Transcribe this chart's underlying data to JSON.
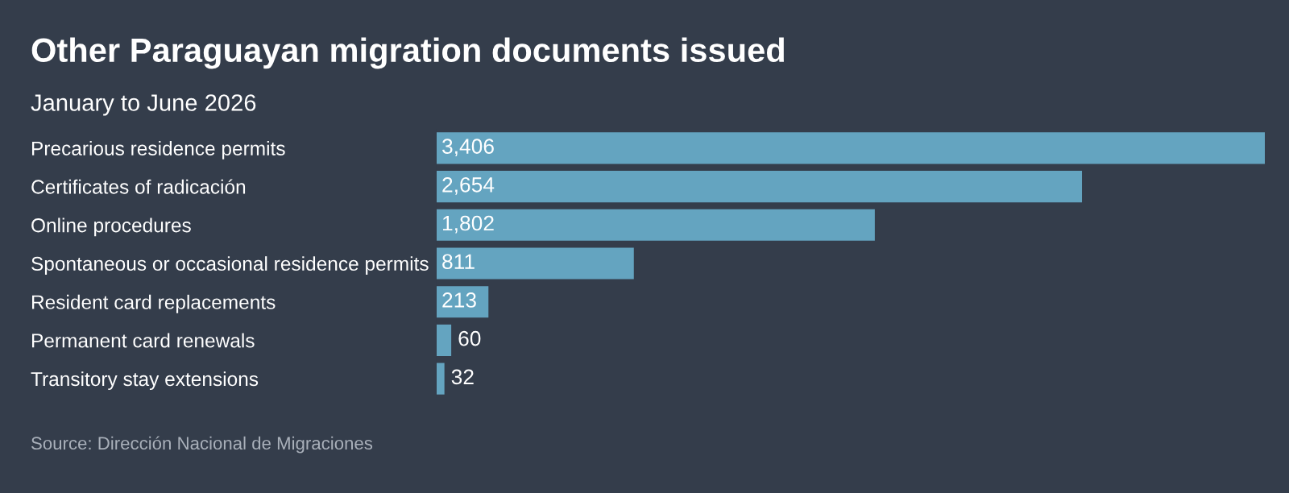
{
  "chart_data": {
    "type": "bar",
    "orientation": "horizontal",
    "title": "Other Paraguayan migration documents issued",
    "subtitle": "January to June 2026",
    "categories": [
      "Precarious residence permits",
      "Certificates of radicación",
      "Online procedures",
      "Spontaneous or occasional residence permits",
      "Resident card replacements",
      "Permanent card renewals",
      "Transitory stay extensions"
    ],
    "values": [
      3406,
      2654,
      1802,
      811,
      213,
      60,
      32
    ],
    "value_labels": [
      "3,406",
      "2,654",
      "1,802",
      "811",
      "213",
      "60",
      "32"
    ],
    "color": "#64a4c0",
    "grid": false,
    "legend": false,
    "annotations": [
      "Source: Dirección Nacional de Migraciones"
    ]
  }
}
